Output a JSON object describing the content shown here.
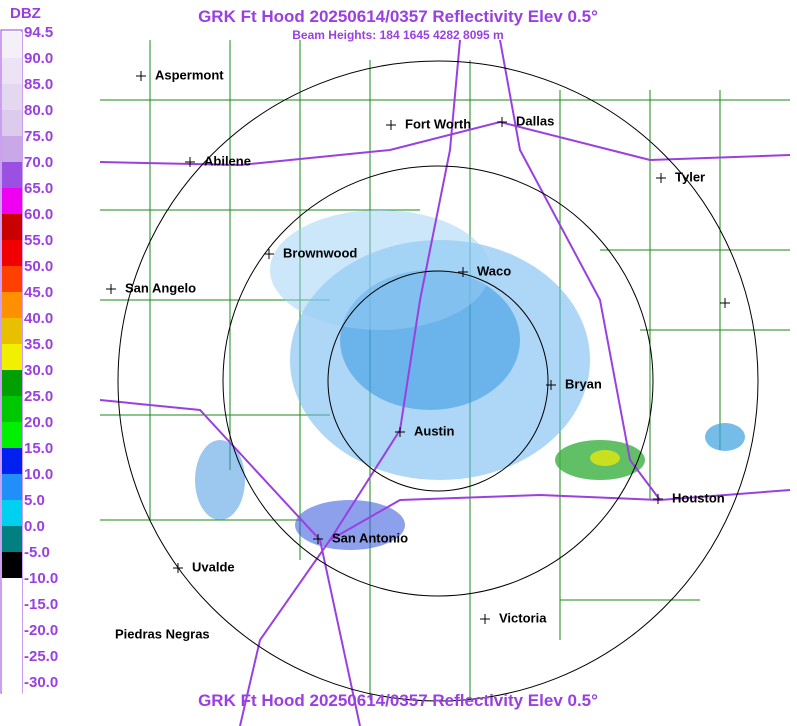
{
  "header": {
    "title": "GRK Ft Hood 20250614/0357 Reflectivity Elev 0.5°",
    "subtitle": "Beam Heights: 184 1645 4282 8095 m",
    "footer_title": "GRK Ft Hood 20250614/0357 Reflectivity Elev 0.5°"
  },
  "legend": {
    "title": "DBZ",
    "levels": [
      {
        "label": "94.5",
        "color": "#f4f0f8"
      },
      {
        "label": "90.0",
        "color": "#ece4f4"
      },
      {
        "label": "85.0",
        "color": "#e4d8f0"
      },
      {
        "label": "80.0",
        "color": "#dccbec"
      },
      {
        "label": "75.0",
        "color": "#c9a8e8"
      },
      {
        "label": "70.0",
        "color": "#9a50e0"
      },
      {
        "label": "65.0",
        "color": "#f000f0"
      },
      {
        "label": "60.0",
        "color": "#c80000"
      },
      {
        "label": "55.0",
        "color": "#f00000"
      },
      {
        "label": "50.0",
        "color": "#ff4000"
      },
      {
        "label": "45.0",
        "color": "#ff9000"
      },
      {
        "label": "40.0",
        "color": "#e8c000"
      },
      {
        "label": "35.0",
        "color": "#f0f000"
      },
      {
        "label": "30.0",
        "color": "#00a000"
      },
      {
        "label": "25.0",
        "color": "#00c800"
      },
      {
        "label": "20.0",
        "color": "#00f000"
      },
      {
        "label": "15.0",
        "color": "#0020f0"
      },
      {
        "label": "10.0",
        "color": "#2090f8"
      },
      {
        "label": "5.0",
        "color": "#00d0f0"
      },
      {
        "label": "0.0",
        "color": "#008080"
      },
      {
        "label": "-5.0",
        "color": "#000000"
      },
      {
        "label": "-10.0",
        "color": "#ffffff"
      },
      {
        "label": "-15.0",
        "color": "#ffffff"
      },
      {
        "label": "-20.0",
        "color": "#ffffff"
      },
      {
        "label": "-25.0",
        "color": "#ffffff"
      },
      {
        "label": "-30.0",
        "color": "#ffffff"
      }
    ]
  },
  "cities": [
    {
      "name": "Aspermont"
    },
    {
      "name": "Abilene"
    },
    {
      "name": "Fort Worth"
    },
    {
      "name": "Dallas"
    },
    {
      "name": "Tyler"
    },
    {
      "name": "Brownwood"
    },
    {
      "name": "Waco"
    },
    {
      "name": "San Angelo"
    },
    {
      "name": "Bryan"
    },
    {
      "name": "Austin"
    },
    {
      "name": "Houston"
    },
    {
      "name": "San Antonio"
    },
    {
      "name": "Uvalde"
    },
    {
      "name": "Victoria"
    },
    {
      "name": "Piedras Negras"
    }
  ]
}
